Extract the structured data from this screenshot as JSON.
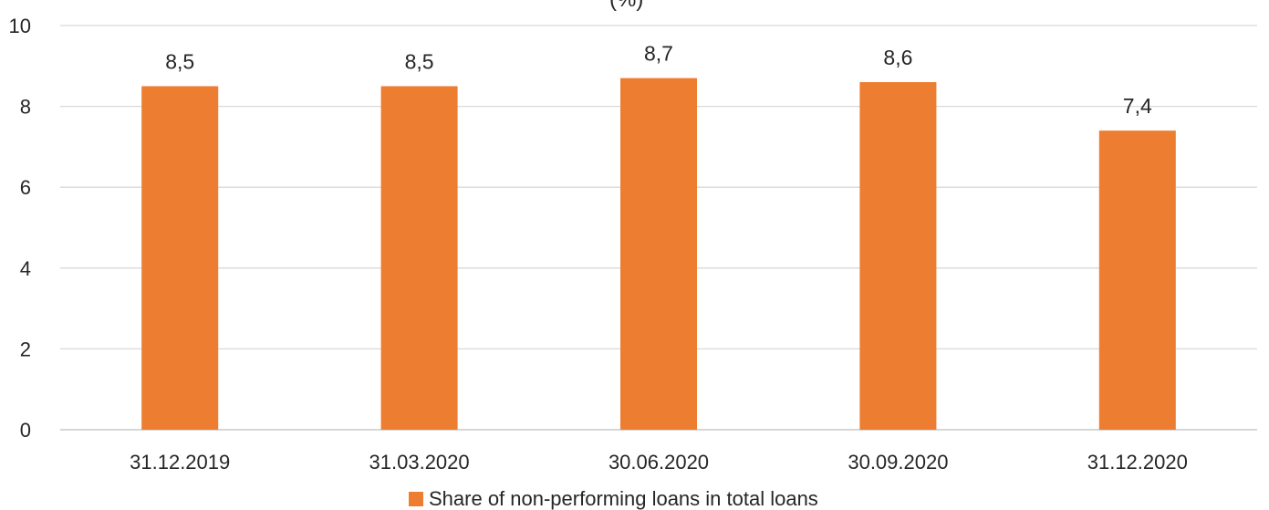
{
  "chart_data": {
    "type": "bar",
    "title_fragment": "(%)",
    "categories": [
      "31.12.2019",
      "31.03.2020",
      "30.06.2020",
      "30.09.2020",
      "31.12.2020"
    ],
    "series": [
      {
        "name": "Share of non-performing loans in total loans",
        "values": [
          8.5,
          8.5,
          8.7,
          8.6,
          7.4
        ],
        "data_labels": [
          "8,5",
          "8,5",
          "8,7",
          "8,6",
          "7,4"
        ],
        "color": "#ED7D31"
      }
    ],
    "ylim": [
      0,
      10
    ],
    "yticks": [
      0,
      2,
      4,
      6,
      8,
      10
    ],
    "grid": true,
    "legend_position": "bottom"
  }
}
